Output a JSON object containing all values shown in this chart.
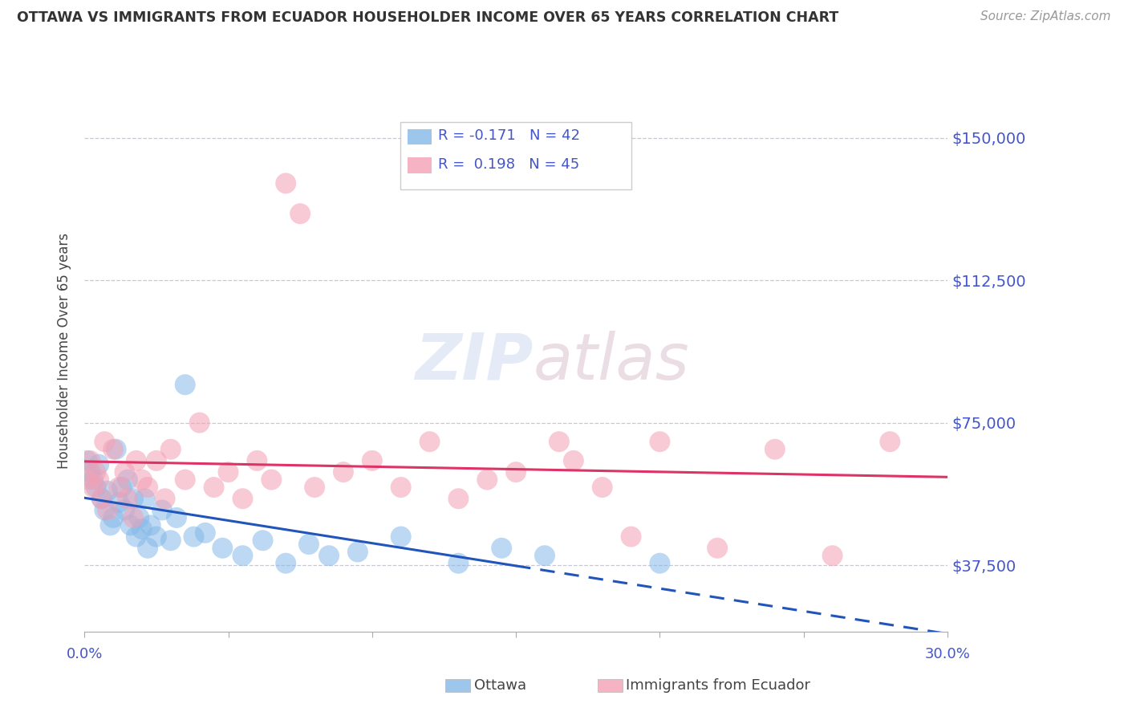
{
  "title": "OTTAWA VS IMMIGRANTS FROM ECUADOR HOUSEHOLDER INCOME OVER 65 YEARS CORRELATION CHART",
  "source": "Source: ZipAtlas.com",
  "ylabel": "Householder Income Over 65 years",
  "xlim": [
    0.0,
    30.0
  ],
  "ylim": [
    20000,
    168000
  ],
  "yticks": [
    37500,
    75000,
    112500,
    150000
  ],
  "ytick_labels": [
    "$37,500",
    "$75,000",
    "$112,500",
    "$150,000"
  ],
  "grid_color": "#cccccc",
  "background_color": "#ffffff",
  "ottawa_color": "#85b8e8",
  "ecuador_color": "#f4a0b5",
  "ottawa_line_color": "#2255bb",
  "ecuador_line_color": "#dd3366",
  "label_color": "#4455cc",
  "ottawa_x": [
    0.1,
    0.2,
    0.3,
    0.4,
    0.5,
    0.6,
    0.7,
    0.8,
    0.9,
    1.0,
    1.1,
    1.2,
    1.3,
    1.4,
    1.5,
    1.6,
    1.7,
    1.8,
    1.9,
    2.0,
    2.1,
    2.2,
    2.3,
    2.5,
    2.7,
    3.0,
    3.2,
    3.5,
    3.8,
    4.2,
    4.8,
    5.5,
    6.2,
    7.0,
    7.8,
    8.5,
    9.5,
    11.0,
    13.0,
    14.5,
    16.0,
    20.0
  ],
  "ottawa_y": [
    65000,
    62000,
    60000,
    58000,
    64000,
    55000,
    52000,
    57000,
    48000,
    50000,
    68000,
    54000,
    58000,
    52000,
    60000,
    48000,
    55000,
    45000,
    50000,
    47000,
    55000,
    42000,
    48000,
    45000,
    52000,
    44000,
    50000,
    85000,
    45000,
    46000,
    42000,
    40000,
    44000,
    38000,
    43000,
    40000,
    41000,
    45000,
    38000,
    42000,
    40000,
    38000
  ],
  "ecuador_x": [
    0.1,
    0.2,
    0.3,
    0.4,
    0.5,
    0.6,
    0.7,
    0.8,
    1.0,
    1.2,
    1.4,
    1.5,
    1.7,
    1.8,
    2.0,
    2.2,
    2.5,
    2.8,
    3.0,
    3.5,
    4.0,
    4.5,
    5.0,
    5.5,
    6.0,
    6.5,
    7.0,
    7.5,
    8.0,
    9.0,
    10.0,
    11.0,
    12.0,
    13.0,
    14.0,
    15.0,
    16.5,
    17.0,
    18.0,
    19.0,
    20.0,
    22.0,
    24.0,
    26.0,
    28.0
  ],
  "ecuador_y": [
    60000,
    65000,
    58000,
    62000,
    60000,
    55000,
    70000,
    52000,
    68000,
    58000,
    62000,
    55000,
    50000,
    65000,
    60000,
    58000,
    65000,
    55000,
    68000,
    60000,
    75000,
    58000,
    62000,
    55000,
    65000,
    60000,
    138000,
    130000,
    58000,
    62000,
    65000,
    58000,
    70000,
    55000,
    60000,
    62000,
    70000,
    65000,
    58000,
    45000,
    70000,
    42000,
    68000,
    40000,
    70000
  ]
}
